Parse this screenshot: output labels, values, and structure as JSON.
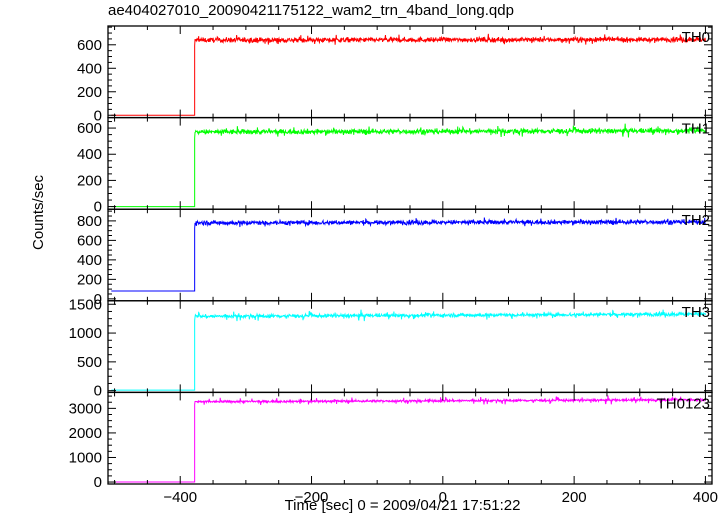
{
  "chart_data": {
    "type": "line",
    "title": "ae404027010_20090421175122_wam2_trn_4band_long.qdp",
    "xlabel": "Time [sec] 0 = 2009/04/21 17:51:22",
    "ylabel": "Counts/sec",
    "xlim": [
      -510,
      410
    ],
    "xticks": [
      -400,
      -200,
      0,
      200,
      400
    ],
    "xtick_labels": [
      "−400",
      "−200",
      "0",
      "200",
      "400"
    ],
    "step_time": -378,
    "grid": false,
    "panels": [
      {
        "name": "TH0",
        "color": "#ff0000",
        "ylim": [
          -20,
          760
        ],
        "yticks": [
          0,
          200,
          400,
          600
        ],
        "pre_level": 0,
        "post_start": 640,
        "post_end": 645,
        "noise": 40,
        "spike": 30
      },
      {
        "name": "TH1",
        "color": "#00ff00",
        "ylim": [
          -20,
          680
        ],
        "yticks": [
          0,
          200,
          400,
          600
        ],
        "pre_level": 0,
        "post_start": 570,
        "post_end": 580,
        "noise": 38,
        "spike": 28
      },
      {
        "name": "TH2",
        "color": "#0000ff",
        "ylim": [
          -20,
          920
        ],
        "yticks": [
          0,
          200,
          400,
          600,
          800
        ],
        "pre_level": 80,
        "post_start": 780,
        "post_end": 790,
        "noise": 45,
        "spike": 30
      },
      {
        "name": "TH3",
        "color": "#00ffff",
        "ylim": [
          -30,
          1560
        ],
        "yticks": [
          0,
          500,
          1000,
          1500
        ],
        "pre_level": 10,
        "post_start": 1290,
        "post_end": 1330,
        "noise": 60,
        "spike": 60
      },
      {
        "name": "TH0123",
        "color": "#ff00ff",
        "ylim": [
          -80,
          3650
        ],
        "yticks": [
          0,
          1000,
          2000,
          3000
        ],
        "pre_level": 0,
        "post_start": 3270,
        "post_end": 3350,
        "noise": 90,
        "spike": 120
      }
    ]
  }
}
